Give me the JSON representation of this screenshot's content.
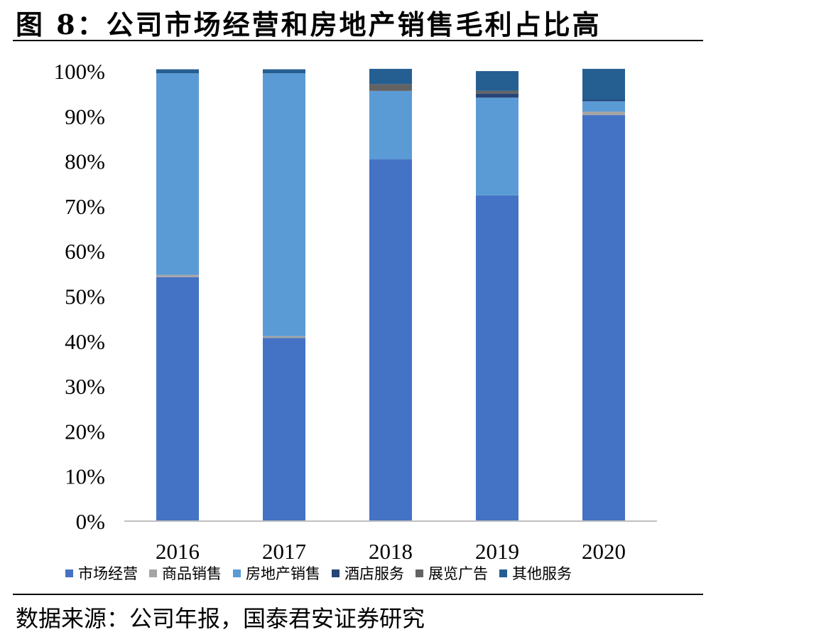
{
  "figure": {
    "title": "图 8：公司市场经营和房地产销售毛利占比高",
    "source": "数据来源：公司年报，国泰君安证券研究"
  },
  "chart_data": {
    "type": "bar",
    "stacked": true,
    "categories": [
      "2016",
      "2017",
      "2018",
      "2019",
      "2020"
    ],
    "ylim": [
      0,
      100
    ],
    "yticks": [
      "0%",
      "10%",
      "20%",
      "30%",
      "40%",
      "50%",
      "60%",
      "70%",
      "80%",
      "90%",
      "100%"
    ],
    "grid": false,
    "legend_position": "bottom",
    "series": [
      {
        "name": "市场经营",
        "color": "#4472C4",
        "values": [
          54.2,
          40.7,
          80.4,
          72.4,
          90.2
        ]
      },
      {
        "name": "商品销售",
        "color": "#A5A5A5",
        "values": [
          0.5,
          0.4,
          0.0,
          0.0,
          0.8
        ]
      },
      {
        "name": "房地产销售",
        "color": "#5B9BD5",
        "values": [
          44.8,
          58.4,
          15.2,
          21.7,
          2.3
        ]
      },
      {
        "name": "酒店服务",
        "color": "#264478",
        "values": [
          0.0,
          0.0,
          0.0,
          0.9,
          0.3
        ]
      },
      {
        "name": "展览广告",
        "color": "#636363",
        "values": [
          0.0,
          0.0,
          1.5,
          0.6,
          0.0
        ]
      },
      {
        "name": "其他服务",
        "color": "#255E91",
        "values": [
          0.9,
          0.9,
          3.4,
          4.4,
          6.9
        ]
      }
    ]
  }
}
